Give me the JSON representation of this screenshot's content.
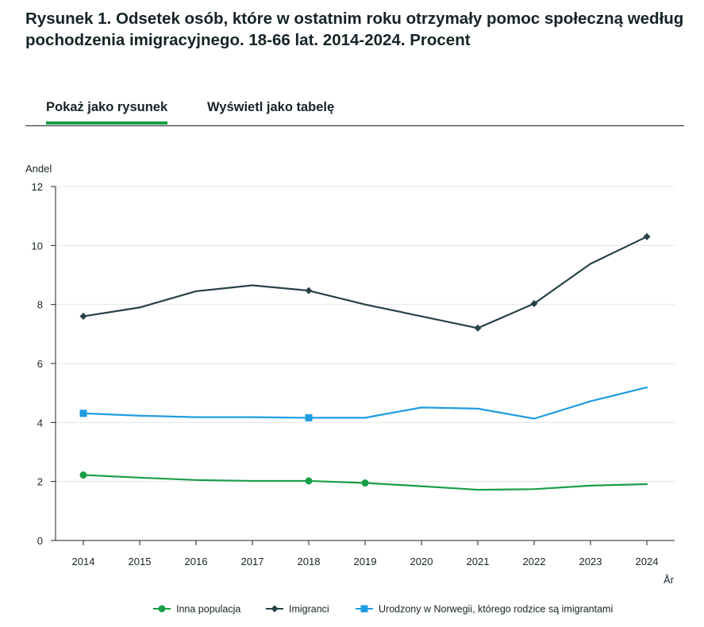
{
  "title": "Rysunek 1. Odsetek osób, które w ostatnim roku otrzymały pomoc społeczną według pochodzenia imigracyjnego. 18-66 lat. 2014-2024. Procent",
  "tabs": [
    {
      "label": "Pokaż jako rysunek",
      "active": true
    },
    {
      "label": "Wyświetl jako tabelę",
      "active": false
    }
  ],
  "colors": {
    "accent": "#1a9d49",
    "grid": "#e6e6e6",
    "axis": "#162327"
  },
  "chart_data": {
    "type": "line",
    "title": "",
    "ylabel": "Andel",
    "xlabel": "År",
    "ylim": [
      0,
      12
    ],
    "yticks": [
      "0",
      "2",
      "4",
      "6",
      "8",
      "10",
      "12"
    ],
    "categories": [
      "2014",
      "2015",
      "2016",
      "2017",
      "2018",
      "2019",
      "2020",
      "2021",
      "2022",
      "2023",
      "2024"
    ],
    "series": [
      {
        "name": "Inna populacja",
        "color": "#1a9d49",
        "marker": "circle",
        "values": [
          2.22,
          2.13,
          2.05,
          2.02,
          2.02,
          1.95,
          1.84,
          1.72,
          1.74,
          1.86,
          1.91
        ],
        "marked": [
          0,
          4,
          5
        ]
      },
      {
        "name": "Imigranci",
        "color": "#274247",
        "marker": "diamond",
        "values": [
          7.6,
          7.9,
          8.45,
          8.65,
          8.47,
          8.0,
          7.6,
          7.2,
          8.03,
          9.38,
          10.3
        ],
        "marked": [
          0,
          4,
          7,
          8,
          10
        ]
      },
      {
        "name": "Urodzony w Norwegii, którego rodzice są imigrantami",
        "color": "#1f9de0",
        "marker": "square",
        "values": [
          4.31,
          4.23,
          4.18,
          4.18,
          4.16,
          4.16,
          4.51,
          4.47,
          4.13,
          4.72,
          5.19
        ],
        "marked": [
          0,
          4
        ]
      }
    ]
  }
}
